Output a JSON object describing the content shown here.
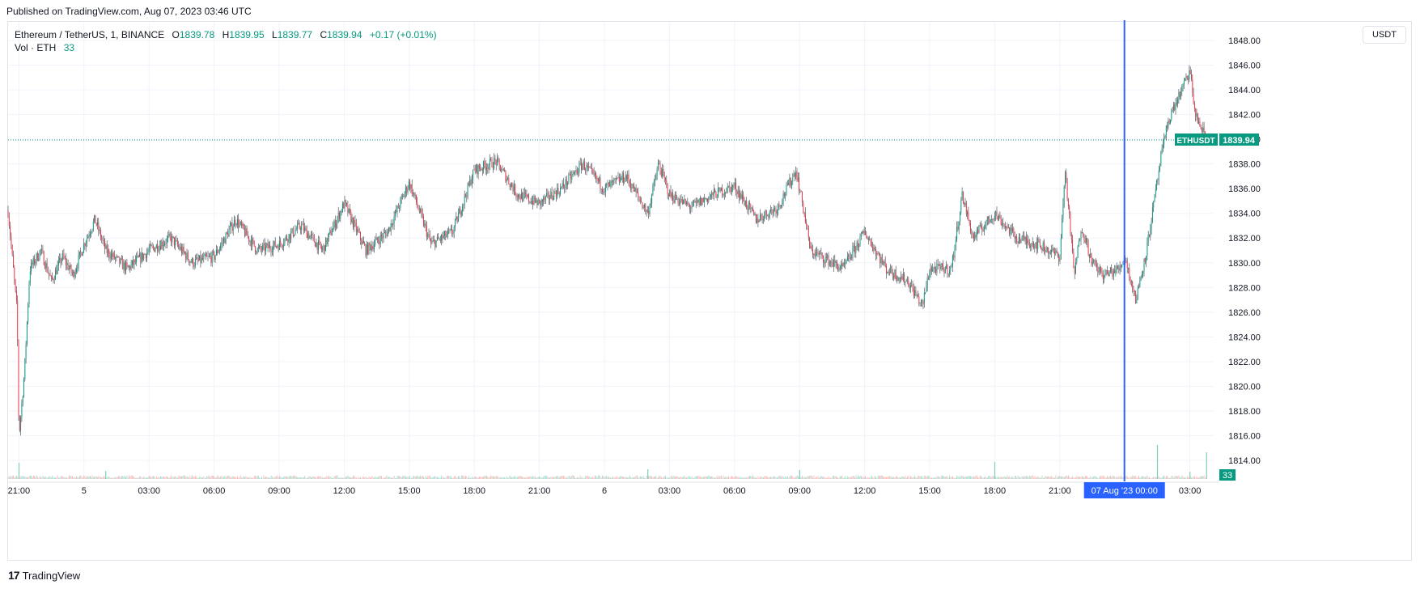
{
  "header": {
    "published": "Published on TradingView.com, Aug 07, 2023 03:46 UTC"
  },
  "legend": {
    "symbol": "Ethereum / TetherUS, 1, BINANCE",
    "open_label": "O",
    "open": "1839.78",
    "high_label": "H",
    "high": "1839.95",
    "low_label": "L",
    "low": "1839.77",
    "close_label": "C",
    "close": "1839.94",
    "change": "+0.17 (+0.01%)",
    "vol_label": "Vol · ETH",
    "vol_value": "33"
  },
  "toolbar": {
    "currency": "USDT"
  },
  "footer": {
    "brand": "TradingView",
    "brand_mark": "17"
  },
  "colors": {
    "up": "#089981",
    "down": "#f23645",
    "crosshair": "#2962ff",
    "grid": "#f0f3fa",
    "axis_text": "#131722"
  },
  "chart_data": {
    "type": "candlestick",
    "symbol": "ETHUSDT",
    "interval": "1",
    "exchange": "BINANCE",
    "ylim": [
      1812.5,
      1849.5
    ],
    "yticks": [
      "1848.00",
      "1846.00",
      "1844.00",
      "1842.00",
      "1840.00",
      "1838.00",
      "1836.00",
      "1834.00",
      "1832.00",
      "1830.00",
      "1828.00",
      "1826.00",
      "1824.00",
      "1822.00",
      "1820.00",
      "1818.00",
      "1816.00",
      "1814.00"
    ],
    "xticks": [
      "21:00",
      "5",
      "03:00",
      "06:00",
      "09:00",
      "12:00",
      "15:00",
      "18:00",
      "21:00",
      "6",
      "03:00",
      "06:00",
      "09:00",
      "12:00",
      "15:00",
      "18:00",
      "21:00",
      "03:00"
    ],
    "price_series": [
      [
        "Aug 04 20:30",
        1834.2
      ],
      [
        "Aug 04 20:55",
        1826.0
      ],
      [
        "Aug 04 21:00",
        1815.9
      ],
      [
        "Aug 04 21:15",
        1821.0
      ],
      [
        "Aug 04 21:30",
        1829.5
      ],
      [
        "Aug 04 22:00",
        1831.0
      ],
      [
        "Aug 04 22:30",
        1828.5
      ],
      [
        "Aug 04 23:00",
        1830.5
      ],
      [
        "Aug 04 23:30",
        1829.0
      ],
      [
        "Aug 05 00:00",
        1831.5
      ],
      [
        "Aug 05 00:30",
        1833.5
      ],
      [
        "Aug 05 01:00",
        1831.0
      ],
      [
        "Aug 05 02:00",
        1829.5
      ],
      [
        "Aug 05 03:00",
        1831.0
      ],
      [
        "Aug 05 04:00",
        1832.0
      ],
      [
        "Aug 05 05:00",
        1830.0
      ],
      [
        "Aug 05 06:00",
        1830.5
      ],
      [
        "Aug 05 07:00",
        1833.5
      ],
      [
        "Aug 05 08:00",
        1831.0
      ],
      [
        "Aug 05 09:00",
        1831.5
      ],
      [
        "Aug 05 10:00",
        1833.0
      ],
      [
        "Aug 05 11:00",
        1831.0
      ],
      [
        "Aug 05 12:00",
        1834.8
      ],
      [
        "Aug 05 13:00",
        1831.0
      ],
      [
        "Aug 05 14:00",
        1832.5
      ],
      [
        "Aug 05 15:00",
        1836.5
      ],
      [
        "Aug 05 16:00",
        1831.5
      ],
      [
        "Aug 05 17:00",
        1832.5
      ],
      [
        "Aug 05 18:00",
        1837.5
      ],
      [
        "Aug 05 19:00",
        1838.2
      ],
      [
        "Aug 05 20:00",
        1835.5
      ],
      [
        "Aug 05 21:00",
        1834.8
      ],
      [
        "Aug 05 22:00",
        1836.0
      ],
      [
        "Aug 05 23:00",
        1838.0
      ],
      [
        "Aug 06 00:00",
        1836.0
      ],
      [
        "Aug 06 01:00",
        1837.0
      ],
      [
        "Aug 06 02:00",
        1834.0
      ],
      [
        "Aug 06 02:30",
        1838.0
      ],
      [
        "Aug 06 03:00",
        1835.5
      ],
      [
        "Aug 06 04:00",
        1834.5
      ],
      [
        "Aug 06 05:00",
        1835.5
      ],
      [
        "Aug 06 06:00",
        1836.2
      ],
      [
        "Aug 06 07:00",
        1833.5
      ],
      [
        "Aug 06 08:00",
        1834.5
      ],
      [
        "Aug 06 08:50",
        1837.5
      ],
      [
        "Aug 06 09:10",
        1834.5
      ],
      [
        "Aug 06 09:30",
        1831.0
      ],
      [
        "Aug 06 10:00",
        1830.5
      ],
      [
        "Aug 06 11:00",
        1829.5
      ],
      [
        "Aug 06 12:00",
        1832.5
      ],
      [
        "Aug 06 13:00",
        1829.5
      ],
      [
        "Aug 06 14:00",
        1828.5
      ],
      [
        "Aug 06 14:40",
        1826.5
      ],
      [
        "Aug 06 15:00",
        1829.5
      ],
      [
        "Aug 06 16:00",
        1829.5
      ],
      [
        "Aug 06 16:30",
        1835.5
      ],
      [
        "Aug 06 17:00",
        1832.0
      ],
      [
        "Aug 06 18:00",
        1834.0
      ],
      [
        "Aug 06 19:00",
        1832.0
      ],
      [
        "Aug 06 20:00",
        1831.5
      ],
      [
        "Aug 06 21:00",
        1830.5
      ],
      [
        "Aug 06 21:15",
        1837.5
      ],
      [
        "Aug 06 21:40",
        1829.0
      ],
      [
        "Aug 06 22:00",
        1833.0
      ],
      [
        "Aug 06 22:30",
        1830.0
      ],
      [
        "Aug 06 23:00",
        1829.0
      ],
      [
        "Aug 06 23:45",
        1829.5
      ],
      [
        "Aug 07 00:00",
        1830.5
      ],
      [
        "Aug 07 00:30",
        1827.0
      ],
      [
        "Aug 07 01:00",
        1831.0
      ],
      [
        "Aug 07 01:40",
        1838.5
      ],
      [
        "Aug 07 02:00",
        1841.5
      ],
      [
        "Aug 07 02:30",
        1843.5
      ],
      [
        "Aug 07 03:00",
        1845.5
      ],
      [
        "Aug 07 03:15",
        1842.0
      ],
      [
        "Aug 07 03:46",
        1839.94
      ]
    ],
    "volume_spikes": [
      [
        "Aug 04 21:00",
        20
      ],
      [
        "Aug 05 01:00",
        10
      ],
      [
        "Aug 06 02:00",
        12
      ],
      [
        "Aug 06 09:00",
        11
      ],
      [
        "Aug 06 18:00",
        21
      ],
      [
        "Aug 07 01:30",
        42
      ],
      [
        "Aug 07 03:00",
        9
      ],
      [
        "Aug 07 03:46",
        33
      ]
    ],
    "crosshair": {
      "time_label": "07 Aug '23   00:00"
    },
    "last_price": {
      "symbol_label": "ETHUSDT",
      "value": "1839.94"
    },
    "last_volume": "33",
    "grid": true,
    "legend_position": "top-left"
  }
}
